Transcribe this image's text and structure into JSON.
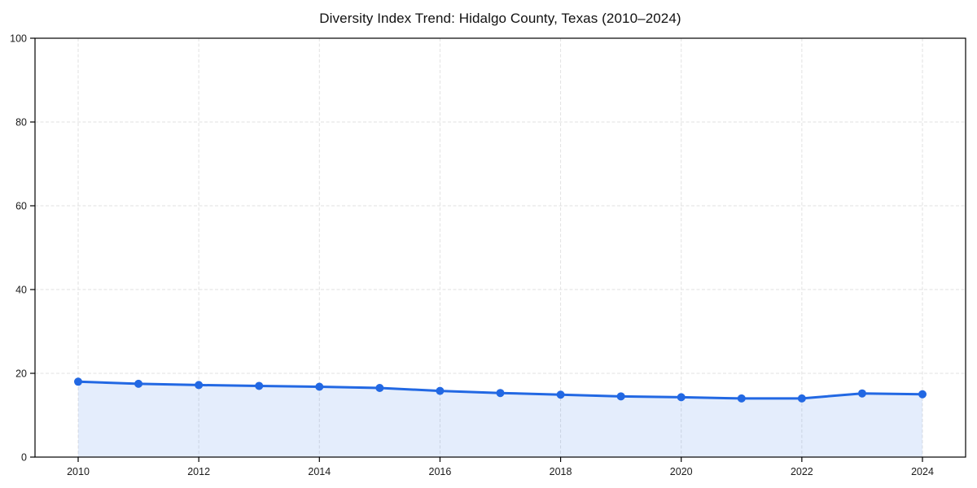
{
  "page": {
    "background_color": "#ffffff"
  },
  "chart_data": {
    "type": "line",
    "title": "Diversity Index Trend: Hidalgo County, Texas (2010–2024)",
    "x": [
      2010,
      2011,
      2012,
      2013,
      2014,
      2015,
      2016,
      2017,
      2018,
      2019,
      2020,
      2021,
      2022,
      2023,
      2024
    ],
    "series": [
      {
        "name": "Diversity Index",
        "values": [
          18.0,
          17.5,
          17.2,
          17.0,
          16.8,
          16.5,
          15.8,
          15.3,
          14.9,
          14.5,
          14.3,
          14.0,
          14.0,
          15.2,
          15.0
        ]
      }
    ],
    "xlabel": "",
    "ylabel": "",
    "ylim": [
      0,
      100
    ],
    "yticks": [
      0,
      20,
      40,
      60,
      80,
      100
    ],
    "xticks": [
      2010,
      2012,
      2014,
      2016,
      2018,
      2020,
      2022,
      2024
    ],
    "grid": true,
    "grid_line_style": "dashed",
    "legend_position": "none",
    "marker": "circle",
    "colors": {
      "line": "#2268e3",
      "marker": "#2268e3",
      "area_fill": "rgba(34, 104, 227, 0.12)",
      "gridline": "#e2e2e2",
      "spine": "#000000",
      "tick_label": "#1a1a1a",
      "title_text": "#111111"
    }
  }
}
